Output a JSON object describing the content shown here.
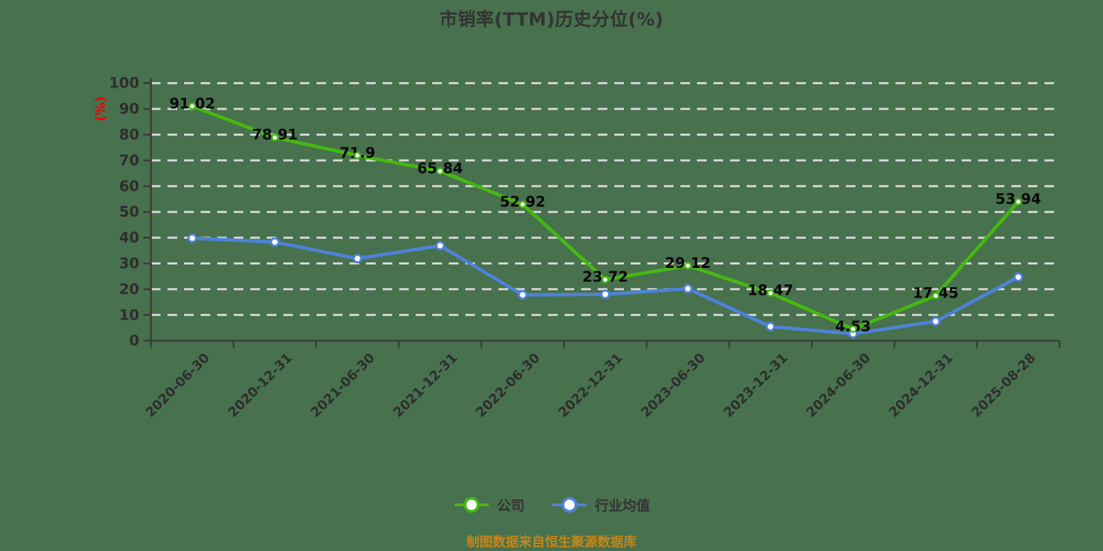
{
  "title": "市销率(TTM)历史分位(%)",
  "footer": "制图数据来自恒生聚源数据库",
  "colors": {
    "background": "#48714d",
    "company": "#46b812",
    "industry": "#4e82d9",
    "grid": "#d9d9d9",
    "axis": "#3a3a3a",
    "tick_label": "#2e2e2e",
    "data_label": "#0a0a0a",
    "y_name": "#ee0000",
    "title": "#333333",
    "footer": "#c4861a",
    "marker_fill": "#ffffff"
  },
  "chart_data": {
    "type": "line",
    "title": "市销率(TTM)历史分位(%)",
    "xlabel": "",
    "ylabel": "(%)",
    "ylim": [
      0,
      100
    ],
    "y_ticks": [
      0,
      10,
      20,
      30,
      40,
      50,
      60,
      70,
      80,
      90,
      100
    ],
    "grid": true,
    "grid_style": "dashed",
    "legend_position": "bottom",
    "categories": [
      "2020-06-30",
      "2020-12-31",
      "2021-06-30",
      "2021-12-31",
      "2022-06-30",
      "2022-12-31",
      "2023-06-30",
      "2023-12-31",
      "2024-06-30",
      "2024-12-31",
      "2025-08-28"
    ],
    "series": [
      {
        "name": "公司",
        "color": "#46b812",
        "values": [
          91.02,
          78.91,
          71.9,
          65.84,
          52.92,
          23.72,
          29.12,
          18.47,
          4.53,
          17.45,
          53.94
        ],
        "labels_visible": true
      },
      {
        "name": "行业均值",
        "color": "#4e82d9",
        "values": [
          39.8,
          38.3,
          31.9,
          36.9,
          17.8,
          18.0,
          20.2,
          5.5,
          2.7,
          7.5,
          24.7
        ],
        "labels_visible": false
      }
    ]
  }
}
